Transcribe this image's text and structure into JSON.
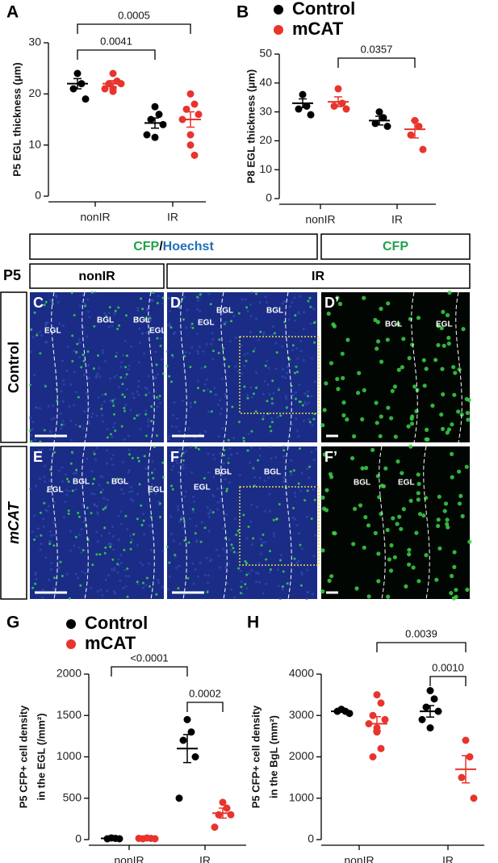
{
  "chart_data": [
    {
      "type": "dot",
      "panel": "A",
      "ylabel": [
        "P5 EGL thickness (μm)"
      ],
      "categories": [
        "nonIR",
        "IR"
      ],
      "ylim": [
        0,
        30
      ],
      "yticks": [
        0,
        10,
        20,
        30
      ],
      "series": [
        {
          "color": "#000000",
          "points": [
            [
              24,
              22,
              21,
              19
            ],
            [
              17.5,
              16,
              15,
              14,
              12,
              11.5
            ]
          ],
          "mean": [
            22,
            14.3
          ],
          "sem": [
            1,
            1
          ]
        },
        {
          "color": "#e8342c",
          "points": [
            [
              24,
              22.5,
              22,
              22,
              21,
              21,
              20.5
            ],
            [
              20,
              18,
              17,
              16,
              15,
              12,
              10,
              8
            ]
          ],
          "mean": [
            22,
            15
          ],
          "sem": [
            0.6,
            1.5
          ]
        }
      ],
      "brackets": [
        {
          "text": "0.0041",
          "from": [
            "nonIR",
            0
          ],
          "to": [
            "IR",
            0
          ]
        },
        {
          "text": "0.0005",
          "from": [
            "nonIR",
            0
          ],
          "to": [
            "IR",
            1
          ]
        }
      ]
    },
    {
      "type": "dot",
      "panel": "B",
      "ylabel": [
        "P8 EGL thickness (μm)"
      ],
      "categories": [
        "nonIR",
        "IR"
      ],
      "ylim": [
        0,
        50
      ],
      "yticks": [
        0,
        10,
        20,
        30,
        40,
        50
      ],
      "legend": "top-left",
      "series": [
        {
          "name": "Control",
          "color": "#000000",
          "points": [
            [
              36,
              32,
              31,
              29
            ],
            [
              30,
              28,
              26,
              25
            ]
          ],
          "mean": [
            33,
            27
          ],
          "sem": [
            1.5,
            1.5
          ]
        },
        {
          "name": "mCAT",
          "color": "#e8342c",
          "points": [
            [
              38,
              33,
              32,
              31
            ],
            [
              27,
              25,
              22,
              17
            ]
          ],
          "mean": [
            33.5,
            24
          ],
          "sem": [
            1.7,
            3
          ]
        }
      ],
      "brackets": [
        {
          "text": "0.0357",
          "from": [
            "nonIR",
            1
          ],
          "to": [
            "IR",
            1
          ]
        }
      ]
    },
    {
      "type": "dot",
      "panel": "G",
      "ylabel": [
        "P5 CFP+ cell density",
        "in the EGL (/mm²)"
      ],
      "categories": [
        "nonIR",
        "IR"
      ],
      "ylim": [
        0,
        2000
      ],
      "yticks": [
        0,
        500,
        1000,
        1500,
        2000
      ],
      "legend": "top-left",
      "series": [
        {
          "name": "Control",
          "color": "#000000",
          "points": [
            [
              20,
              15,
              10,
              10
            ],
            [
              1450,
              1300,
              1200,
              1000,
              500
            ]
          ],
          "mean": [
            15,
            1100
          ],
          "sem": [
            3,
            170
          ]
        },
        {
          "name": "mCAT",
          "color": "#e8342c",
          "points": [
            [
              20,
              15,
              10,
              10,
              15
            ],
            [
              450,
              380,
              300,
              300,
              150
            ]
          ],
          "mean": [
            15,
            320
          ],
          "sem": [
            3,
            60
          ]
        }
      ],
      "brackets": [
        {
          "text": "0.0002",
          "from": [
            "IR",
            0
          ],
          "to": [
            "IR",
            1
          ]
        },
        {
          "text": "<0.0001",
          "from": [
            "nonIR",
            0
          ],
          "to": [
            "IR",
            0
          ]
        }
      ]
    },
    {
      "type": "dot",
      "panel": "H",
      "ylabel": [
        "P5 CFP+ cell density",
        "in the BgL (mm²)"
      ],
      "categories": [
        "nonIR",
        "IR"
      ],
      "ylim": [
        0,
        4000
      ],
      "yticks": [
        0,
        1000,
        2000,
        3000,
        4000
      ],
      "series": [
        {
          "color": "#000000",
          "points": [
            [
              3150,
              3100,
              3100,
              3050
            ],
            [
              3600,
              3400,
              3200,
              3100,
              2900,
              2700
            ]
          ],
          "mean": [
            3100,
            3100
          ],
          "sem": [
            20,
            140
          ]
        },
        {
          "color": "#e8342c",
          "points": [
            [
              3500,
              3300,
              3000,
              2900,
              2800,
              2700,
              2600,
              2200,
              2000
            ],
            [
              2400,
              2000,
              1500,
              1000
            ]
          ],
          "mean": [
            2800,
            1700
          ],
          "sem": [
            170,
            330
          ]
        }
      ],
      "brackets": [
        {
          "text": "0.0010",
          "from": [
            "IR",
            0
          ],
          "to": [
            "IR",
            1
          ]
        },
        {
          "text": "0.0039",
          "from": [
            "nonIR",
            1
          ],
          "to": [
            "IR",
            1
          ]
        }
      ]
    }
  ],
  "micrograph": {
    "header": [
      "CFP",
      "/",
      "Hoechst"
    ],
    "header_right": "CFP",
    "age": "P5",
    "columns": [
      "nonIR",
      "IR"
    ],
    "rows": [
      "Control",
      "mCAT"
    ],
    "panels": [
      {
        "letter": "C",
        "labels": [
          "EGL",
          "BGL",
          "BGL",
          "EGL"
        ]
      },
      {
        "letter": "D",
        "labels": [
          "BGL",
          "EGL",
          "BGL"
        ]
      },
      {
        "letter": "D’",
        "labels": [
          "BGL",
          "EGL"
        ]
      },
      {
        "letter": "E",
        "labels": [
          "EGL",
          "BGL",
          "BGL",
          "EGL"
        ]
      },
      {
        "letter": "F",
        "labels": [
          "BGL",
          "EGL",
          "BGL"
        ]
      },
      {
        "letter": "F’",
        "labels": [
          "BGL",
          "EGL"
        ]
      }
    ]
  }
}
